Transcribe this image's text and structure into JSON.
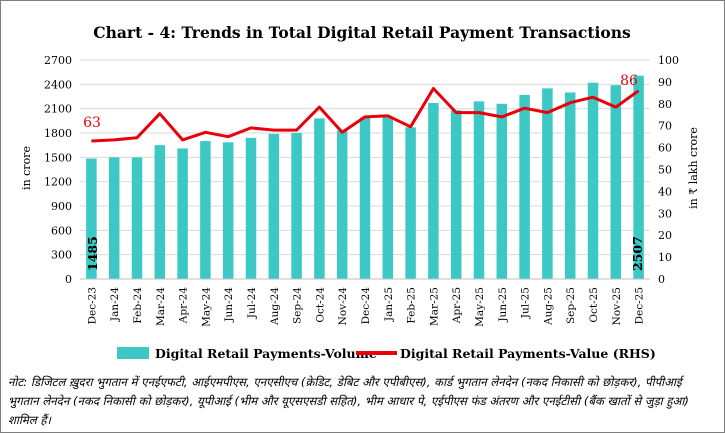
{
  "chart_data": {
    "type": "bar+line",
    "title": "Chart - 4: Trends in Total Digital Retail Payment Transactions",
    "categories": [
      "Dec-23",
      "Jan-24",
      "Feb-24",
      "Mar-24",
      "Apr-24",
      "May-24",
      "Jun-24",
      "Jul-24",
      "Aug-24",
      "Sep-24",
      "Oct-24",
      "Nov-24",
      "Dec-24",
      "Jan-25",
      "Feb-25",
      "Mar-25",
      "Apr-25",
      "May-25",
      "Jun-25",
      "Jul-25",
      "Aug-25",
      "Sep-25",
      "Oct-25",
      "Nov-25",
      "Dec-25"
    ],
    "series": [
      {
        "name": "Digital Retail Payments-Volume",
        "type": "bar",
        "axis": "left",
        "color": "#3cc8c4",
        "values": [
          1485,
          1500,
          1500,
          1650,
          1610,
          1700,
          1685,
          1740,
          1790,
          1800,
          1980,
          1830,
          1990,
          2000,
          1870,
          2170,
          2080,
          2190,
          2160,
          2270,
          2350,
          2300,
          2420,
          2390,
          2507
        ]
      },
      {
        "name": "Digital Retail Payments-Value (RHS)",
        "type": "line",
        "axis": "right",
        "color": "#e8000b",
        "values": [
          63,
          63.5,
          64.5,
          75.5,
          63.5,
          67,
          65,
          69,
          68,
          68,
          78.5,
          67,
          74,
          74.5,
          69.5,
          87,
          76,
          76,
          74,
          78,
          76,
          80.5,
          83,
          78.5,
          86
        ]
      }
    ],
    "data_labels": {
      "volume_first": "1485",
      "volume_last": "2507",
      "value_first": "63",
      "value_last": "86"
    },
    "y_left": {
      "label": "in crore",
      "min": 0,
      "max": 2700,
      "ticks": [
        "0",
        "300",
        "600",
        "900",
        "1200",
        "1500",
        "1800",
        "2100",
        "2400",
        "2700"
      ]
    },
    "y_right": {
      "label": "in ₹ lakh crore",
      "min": 0,
      "max": 100,
      "ticks": [
        "0",
        "10",
        "20",
        "30",
        "40",
        "50",
        "60",
        "70",
        "80",
        "90",
        "100"
      ]
    },
    "legend_position": "bottom"
  },
  "note": "नोट: डिजिटल ख़ुदरा भुगतान में एनईएफटी, आईएमपीएस, एनएसीएच (क्रेडिट, डेबिट और एपीबीएस), कार्ड भुगतान लेनदेन (नकद निकासी को छोड़कर), पीपीआई भुगतान लेनदेन (नकद निकासी को छोड़कर), यूपीआई (भीम और यूएसएसडी सहित), भीम आधार पे, एईपीएस फंड अंतरण और एनईटीसी (बैंक खातों से जुड़ा हुआ) शामिल हैं।"
}
